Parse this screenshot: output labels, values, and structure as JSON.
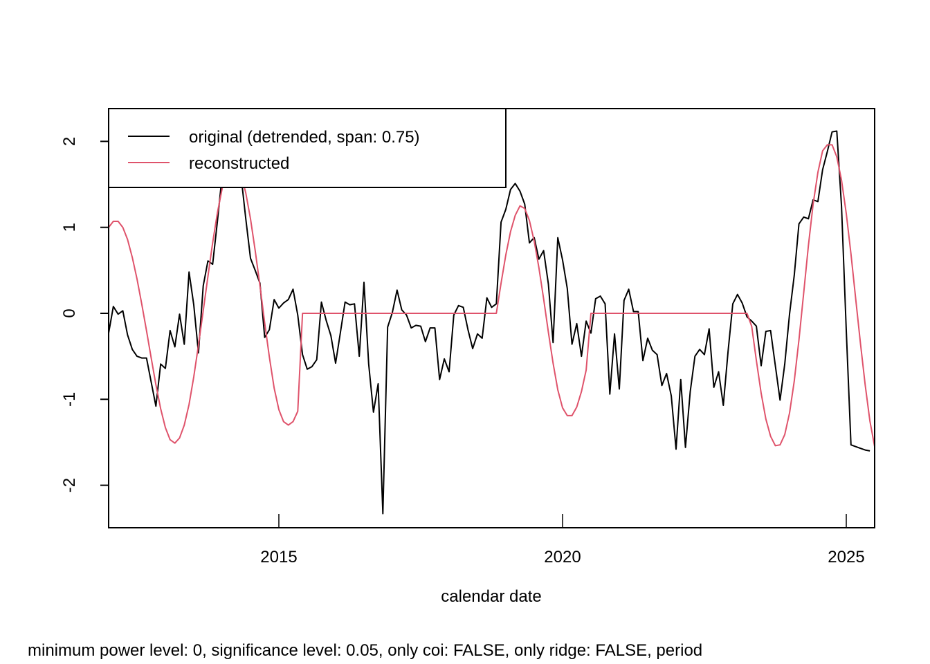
{
  "chart_data": {
    "type": "line",
    "title": "",
    "xlabel": "calendar date",
    "ylabel": "",
    "subtitle": "minimum power level: 0, significance level: 0.05, only coi: FALSE, only ridge: FALSE, period",
    "xlim": [
      2012.0,
      2025.5
    ],
    "ylim": [
      -2.5,
      2.38
    ],
    "grid": false,
    "x_ticks": [
      2015,
      2020,
      2025
    ],
    "x_tick_labels": [
      "2015",
      "2020",
      "2025"
    ],
    "y_ticks": [
      -2,
      -1,
      0,
      1,
      2
    ],
    "y_tick_labels": [
      "-2",
      "-1",
      "0",
      "1",
      "2"
    ],
    "x_start": 2012.0,
    "x_step": 0.08333,
    "legend": {
      "position": "top-left",
      "entries": [
        {
          "label": "original (detrended, span: 0.75)",
          "color": "#000000"
        },
        {
          "label": "reconstructed",
          "color": "#DF536B"
        }
      ]
    },
    "series": [
      {
        "name": "original (detrended, span: 0.75)",
        "color": "#000000",
        "values": [
          -0.23,
          0.08,
          -0.01,
          0.03,
          -0.25,
          -0.42,
          -0.5,
          -0.52,
          -0.52,
          -0.8,
          -1.08,
          -0.59,
          -0.64,
          -0.2,
          -0.39,
          -0.01,
          -0.36,
          0.48,
          0.1,
          -0.46,
          0.32,
          0.61,
          0.57,
          1.07,
          1.6,
          2.05,
          2.3,
          2.05,
          1.6,
          1.1,
          0.64,
          0.5,
          0.35,
          -0.28,
          -0.19,
          0.16,
          0.06,
          0.12,
          0.16,
          0.28,
          -0.02,
          -0.48,
          -0.65,
          -0.62,
          -0.54,
          0.13,
          -0.08,
          -0.26,
          -0.58,
          -0.23,
          0.13,
          0.1,
          0.11,
          -0.5,
          0.36,
          -0.59,
          -1.15,
          -0.82,
          -2.33,
          -0.16,
          0.01,
          0.27,
          0.04,
          -0.02,
          -0.17,
          -0.14,
          -0.15,
          -0.33,
          -0.17,
          -0.17,
          -0.77,
          -0.53,
          -0.68,
          -0.02,
          0.09,
          0.07,
          -0.19,
          -0.41,
          -0.24,
          -0.29,
          0.18,
          0.07,
          0.11,
          1.06,
          1.21,
          1.44,
          1.51,
          1.42,
          1.27,
          0.82,
          0.88,
          0.63,
          0.73,
          0.34,
          -0.34,
          0.88,
          0.62,
          0.29,
          -0.36,
          -0.12,
          -0.5,
          -0.09,
          -0.23,
          0.17,
          0.2,
          0.11,
          -0.94,
          -0.24,
          -0.88,
          0.15,
          0.28,
          0.02,
          0.02,
          -0.55,
          -0.29,
          -0.43,
          -0.48,
          -0.84,
          -0.7,
          -0.96,
          -1.58,
          -0.77,
          -1.56,
          -0.91,
          -0.5,
          -0.42,
          -0.48,
          -0.18,
          -0.86,
          -0.68,
          -1.07,
          -0.45,
          0.11,
          0.22,
          0.12,
          -0.04,
          -0.09,
          -0.15,
          -0.61,
          -0.21,
          -0.2,
          -0.61,
          -1.01,
          -0.59,
          -0.01,
          0.44,
          1.04,
          1.12,
          1.1,
          1.32,
          1.3,
          1.67,
          1.88,
          2.11,
          2.12,
          1.25,
          -0.2,
          -1.53,
          -1.55,
          -1.57,
          -1.59,
          -1.6
        ]
      },
      {
        "name": "reconstructed",
        "color": "#DF536B",
        "values": [
          1.0,
          1.07,
          1.07,
          1.0,
          0.86,
          0.65,
          0.4,
          0.11,
          -0.2,
          -0.52,
          -0.83,
          -1.11,
          -1.33,
          -1.47,
          -1.51,
          -1.45,
          -1.3,
          -1.06,
          -0.74,
          -0.37,
          0.03,
          0.43,
          0.82,
          1.17,
          1.45,
          1.66,
          1.76,
          1.75,
          1.62,
          1.4,
          1.1,
          0.73,
          0.32,
          -0.11,
          -0.51,
          -0.87,
          -1.12,
          -1.26,
          -1.3,
          -1.26,
          -1.14,
          0.0,
          0.0,
          0.0,
          0.0,
          0.0,
          0.0,
          0.0,
          0.0,
          0.0,
          0.0,
          0.0,
          0.0,
          0.0,
          0.0,
          0.0,
          0.0,
          0.0,
          0.0,
          0.0,
          0.0,
          0.0,
          0.0,
          0.0,
          0.0,
          0.0,
          0.0,
          0.0,
          0.0,
          0.0,
          0.0,
          0.0,
          0.0,
          0.0,
          0.0,
          0.0,
          0.0,
          0.0,
          0.0,
          0.0,
          0.0,
          0.0,
          0.0,
          0.35,
          0.68,
          0.95,
          1.14,
          1.25,
          1.22,
          1.08,
          0.84,
          0.53,
          0.17,
          -0.22,
          -0.58,
          -0.89,
          -1.1,
          -1.19,
          -1.19,
          -1.09,
          -0.91,
          -0.66,
          0.0,
          0.0,
          0.0,
          0.0,
          0.0,
          0.0,
          0.0,
          0.0,
          0.0,
          0.0,
          0.0,
          0.0,
          0.0,
          0.0,
          0.0,
          0.0,
          0.0,
          0.0,
          0.0,
          0.0,
          0.0,
          0.0,
          0.0,
          0.0,
          0.0,
          0.0,
          0.0,
          0.0,
          0.0,
          0.0,
          0.0,
          0.0,
          0.0,
          0.0,
          -0.15,
          -0.55,
          -0.93,
          -1.23,
          -1.43,
          -1.54,
          -1.53,
          -1.41,
          -1.16,
          -0.79,
          -0.31,
          0.24,
          0.79,
          1.27,
          1.64,
          1.89,
          1.96,
          1.96,
          1.82,
          1.55,
          1.16,
          0.69,
          0.17,
          -0.35,
          -0.83,
          -1.25,
          -1.55,
          -1.83
        ]
      }
    ]
  }
}
